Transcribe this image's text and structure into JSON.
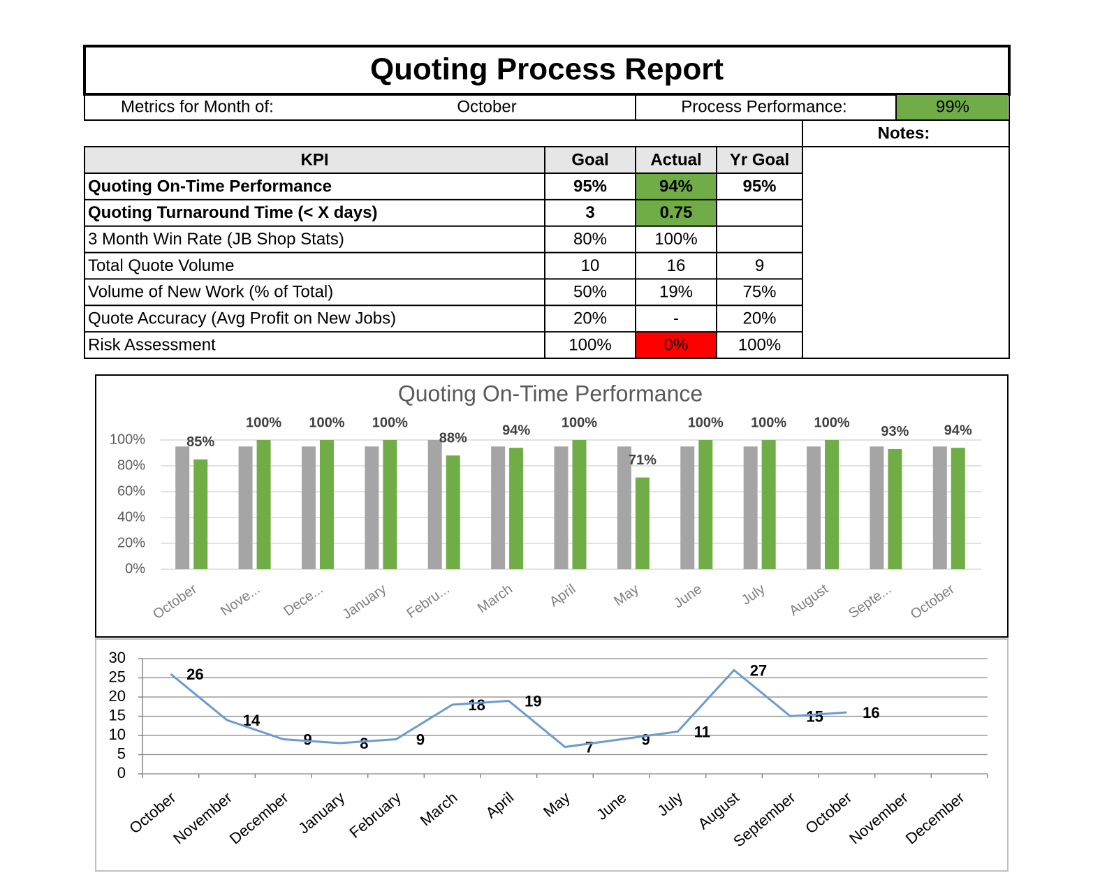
{
  "header": {
    "title": "Quoting Process Report",
    "month_label": "Metrics for Month of:",
    "month": "October",
    "performance_label": "Process Performance:",
    "performance": "99%",
    "performance_color": "#70ad47",
    "notes_label": "Notes:"
  },
  "table": {
    "columns": [
      "KPI",
      "Goal",
      "Actual",
      "Yr Goal"
    ],
    "rows": [
      [
        "Quoting On-Time Performance",
        "95%",
        "94%",
        "95%"
      ],
      [
        "Quoting Turnaround Time (< X days)",
        "3",
        "0.75",
        null
      ],
      [
        "3 Month Win Rate (JB Shop Stats)",
        "80%",
        "100%",
        null
      ],
      [
        "Total Quote Volume",
        "10",
        "16",
        "9"
      ],
      [
        "Volume of New Work (% of Total)",
        "50%",
        "19%",
        "75%"
      ],
      [
        "Quote Accuracy (Avg Profit on New Jobs)",
        "20%",
        "-",
        "20%"
      ],
      [
        "Risk Assessment",
        "100%",
        "0%",
        "100%"
      ]
    ],
    "bold_rows": [
      0,
      1
    ],
    "highlights": [
      {
        "row": 0,
        "col": 2,
        "color": "#70ad47"
      },
      {
        "row": 1,
        "col": 2,
        "color": "#70ad47"
      },
      {
        "row": 6,
        "col": 2,
        "color": "#ff0000"
      }
    ]
  },
  "chart_data": [
    {
      "type": "bar",
      "title": "Quoting On-Time Performance",
      "categories": [
        "October",
        "Nove...",
        "Dece...",
        "January",
        "Febru...",
        "March",
        "April",
        "May",
        "June",
        "July",
        "August",
        "Septe...",
        "October"
      ],
      "series": [
        {
          "color": "#a5a5a5",
          "values": [
            95,
            95,
            95,
            95,
            100,
            95,
            95,
            95,
            95,
            95,
            95,
            95,
            95
          ]
        },
        {
          "color": "#70ad47",
          "values": [
            85,
            100,
            100,
            100,
            88,
            94,
            100,
            71,
            100,
            100,
            100,
            93,
            94
          ],
          "value_labels": [
            "85%",
            "100%",
            "100%",
            "100%",
            "88%",
            "94%",
            "100%",
            "71%",
            "100%",
            "100%",
            "100%",
            "93%",
            "94%"
          ]
        }
      ],
      "ylim": [
        0,
        100
      ],
      "yticks": [
        {
          "value": 0,
          "label": "0%"
        },
        {
          "value": 20,
          "label": "20%"
        },
        {
          "value": 40,
          "label": "40%"
        },
        {
          "value": 60,
          "label": "60%"
        },
        {
          "value": 80,
          "label": "80%"
        },
        {
          "value": 100,
          "label": "100%"
        }
      ],
      "grid": true
    },
    {
      "type": "line",
      "categories": [
        "October",
        "November",
        "December",
        "January",
        "February",
        "March",
        "April",
        "May",
        "June",
        "July",
        "August",
        "September",
        "October",
        "November",
        "December"
      ],
      "values": [
        26,
        14,
        9,
        8,
        9,
        18,
        19,
        7,
        9,
        11,
        27,
        15,
        16,
        null,
        null
      ],
      "color": "#6a9bd1",
      "ylim": [
        0,
        30
      ],
      "yticks": [
        0,
        5,
        10,
        15,
        20,
        25,
        30
      ],
      "grid": true
    }
  ]
}
